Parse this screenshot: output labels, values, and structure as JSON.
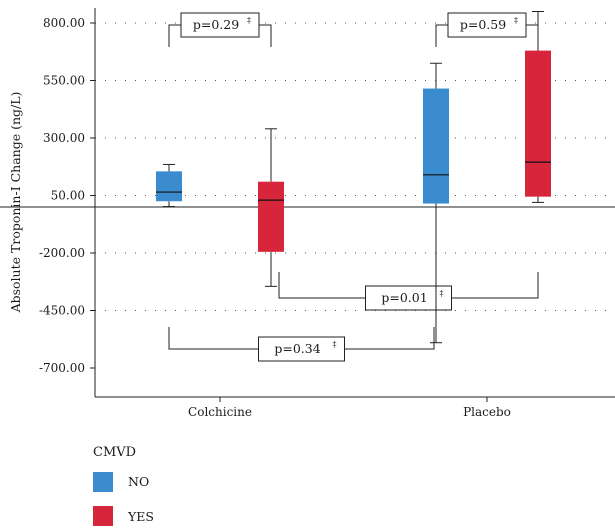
{
  "chart_data": {
    "type": "boxplot",
    "ylabel": "Absolute Troponin-I Change (ng/L)",
    "yticks": [
      "800.00",
      "550.00",
      "300.00",
      "50.00",
      "-200.00",
      "-450.00",
      "-700.00"
    ],
    "ylim": [
      -700,
      850
    ],
    "reference_line": 0,
    "grid": "dotted horizontal",
    "categories": [
      "Colchicine",
      "Placebo"
    ],
    "legend": {
      "title": "CMVD",
      "placement": "bottom-left",
      "items": [
        {
          "label": "NO",
          "color": "#3a8ccf"
        },
        {
          "label": "YES",
          "color": "#d7253c"
        }
      ]
    },
    "series": [
      {
        "name": "NO",
        "color": "#3a8ccf",
        "boxes": [
          {
            "category": "Colchicine",
            "whisker_low": 2,
            "q1": 25,
            "median": 65,
            "q3": 155,
            "whisker_high": 185
          },
          {
            "category": "Placebo",
            "whisker_low": -590,
            "q1": 15,
            "median": 140,
            "q3": 515,
            "whisker_high": 625
          }
        ]
      },
      {
        "name": "YES",
        "color": "#d7253c",
        "boxes": [
          {
            "category": "Colchicine",
            "whisker_low": -345,
            "q1": -195,
            "median": 30,
            "q3": 110,
            "whisker_high": 340
          },
          {
            "category": "Placebo",
            "whisker_low": 20,
            "q1": 45,
            "median": 195,
            "q3": 680,
            "whisker_high": 850
          }
        ]
      }
    ],
    "annotations": [
      {
        "id": "colchicine-no-vs-yes",
        "text": "p=0.29",
        "sup": "‡"
      },
      {
        "id": "placebo-no-vs-yes",
        "text": "p=0.59",
        "sup": "‡"
      },
      {
        "id": "yes-colchicine-vs-placebo",
        "text": "p=0.01",
        "sup": "‡"
      },
      {
        "id": "no-colchicine-vs-placebo",
        "text": "p=0.34",
        "sup": "‡"
      }
    ]
  }
}
